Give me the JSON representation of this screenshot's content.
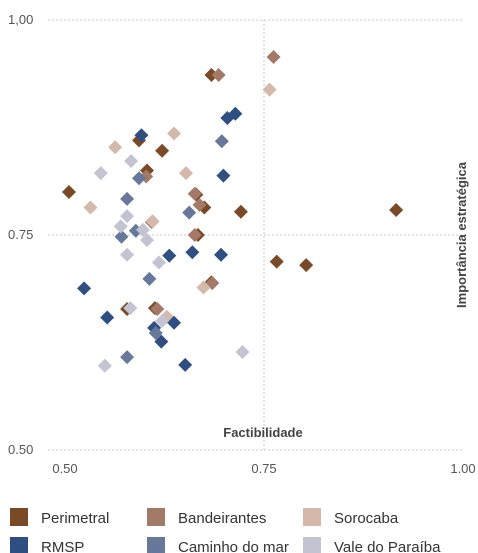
{
  "chart_data": {
    "type": "scatter",
    "xlabel": "Factibilidade",
    "ylabel": "Importância estratégica",
    "xlim": [
      0.5,
      1.0
    ],
    "ylim": [
      0.5,
      1.0
    ],
    "x_ticks": [
      "0.50",
      "0.75",
      "1.00"
    ],
    "y_ticks": [
      "0.50",
      "0.75",
      "1,00"
    ],
    "reference_lines": {
      "x": 0.75,
      "y": 0.75
    },
    "marker": "diamond",
    "legend_position": "bottom",
    "series": [
      {
        "name": "Perimetral",
        "color": "#7a4a26",
        "points": [
          [
            0.505,
            0.8
          ],
          [
            0.593,
            0.86
          ],
          [
            0.603,
            0.825
          ],
          [
            0.622,
            0.848
          ],
          [
            0.665,
            0.797
          ],
          [
            0.684,
            0.936
          ],
          [
            0.721,
            0.777
          ],
          [
            0.766,
            0.719
          ],
          [
            0.803,
            0.715
          ],
          [
            0.916,
            0.779
          ],
          [
            0.684,
            0.695
          ],
          [
            0.578,
            0.664
          ],
          [
            0.667,
            0.75
          ],
          [
            0.675,
            0.782
          ],
          [
            0.613,
            0.665
          ]
        ]
      },
      {
        "name": "Bandeirantes",
        "color": "#a37a68",
        "points": [
          [
            0.762,
            0.957
          ],
          [
            0.693,
            0.936
          ],
          [
            0.663,
            0.798
          ],
          [
            0.669,
            0.785
          ],
          [
            0.663,
            0.75
          ],
          [
            0.685,
            0.694
          ],
          [
            0.602,
            0.818
          ],
          [
            0.616,
            0.664
          ],
          [
            0.609,
            0.765
          ]
        ]
      },
      {
        "name": "Sorocaba",
        "color": "#d4b9aa",
        "points": [
          [
            0.532,
            0.782
          ],
          [
            0.563,
            0.852
          ],
          [
            0.637,
            0.868
          ],
          [
            0.652,
            0.822
          ],
          [
            0.757,
            0.919
          ],
          [
            0.674,
            0.689
          ],
          [
            0.61,
            0.766
          ],
          [
            0.628,
            0.655
          ]
        ]
      },
      {
        "name": "RMSP",
        "color": "#2f4f82",
        "points": [
          [
            0.524,
            0.688
          ],
          [
            0.553,
            0.654
          ],
          [
            0.596,
            0.866
          ],
          [
            0.631,
            0.726
          ],
          [
            0.637,
            0.648
          ],
          [
            0.651,
            0.599
          ],
          [
            0.66,
            0.73
          ],
          [
            0.699,
            0.819
          ],
          [
            0.704,
            0.886
          ],
          [
            0.714,
            0.891
          ],
          [
            0.696,
            0.727
          ],
          [
            0.621,
            0.626
          ],
          [
            0.612,
            0.642
          ]
        ]
      },
      {
        "name": "Caminho do mar",
        "color": "#68789a",
        "points": [
          [
            0.578,
            0.792
          ],
          [
            0.589,
            0.755
          ],
          [
            0.593,
            0.816
          ],
          [
            0.606,
            0.699
          ],
          [
            0.656,
            0.776
          ],
          [
            0.697,
            0.859
          ],
          [
            0.578,
            0.608
          ],
          [
            0.571,
            0.748
          ],
          [
            0.614,
            0.636
          ]
        ]
      },
      {
        "name": "Vale do Paraíba",
        "color": "#c3c3d2",
        "points": [
          [
            0.545,
            0.822
          ],
          [
            0.55,
            0.598
          ],
          [
            0.583,
            0.836
          ],
          [
            0.578,
            0.772
          ],
          [
            0.578,
            0.727
          ],
          [
            0.582,
            0.665
          ],
          [
            0.598,
            0.756
          ],
          [
            0.603,
            0.744
          ],
          [
            0.618,
            0.718
          ],
          [
            0.622,
            0.65
          ],
          [
            0.723,
            0.614
          ],
          [
            0.57,
            0.76
          ]
        ]
      }
    ]
  }
}
